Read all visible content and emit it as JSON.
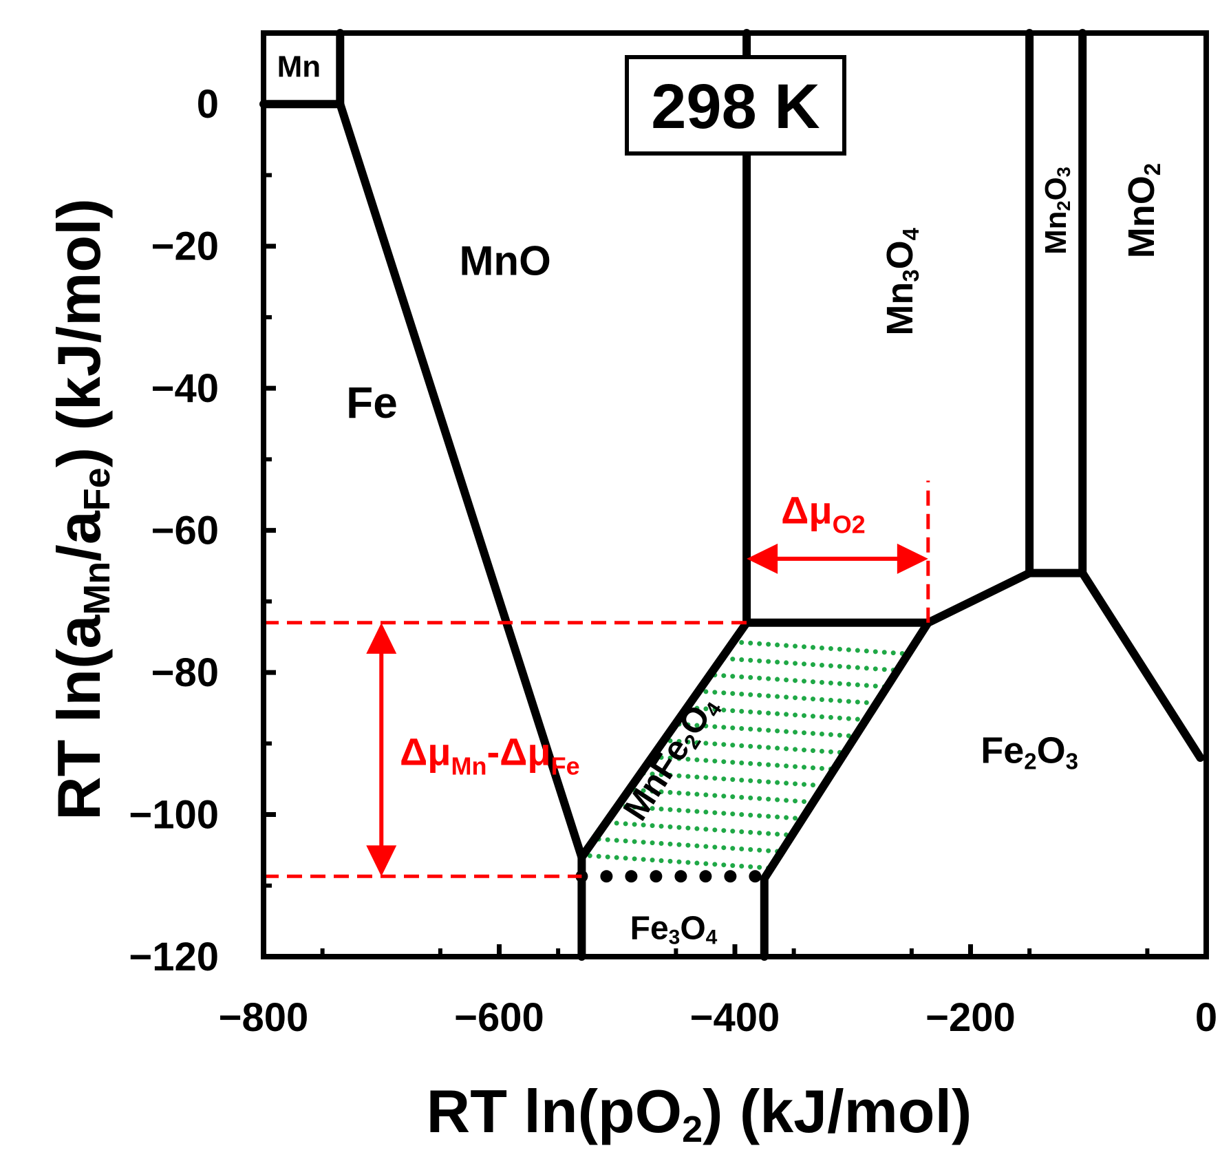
{
  "colors": {
    "line": "#000000",
    "annotation": "#ff0000",
    "hatch": "#1fa846",
    "background": "#ffffff"
  },
  "chart_data": {
    "type": "phase-diagram",
    "title": "298 K",
    "xlabel": {
      "main": "RT ln(pO",
      "sub": "2",
      "tail": ") (kJ/mol)"
    },
    "ylabel": {
      "p1": "RT ln(a",
      "s1": "Mn",
      "p2": "/a",
      "s2": "Fe",
      "p3": ") (kJ/mol)"
    },
    "xlim": [
      -800,
      0
    ],
    "ylim": [
      -120,
      10
    ],
    "xticks": [
      -800,
      -600,
      -400,
      -200,
      0
    ],
    "xtick_labels": [
      "−800",
      "−600",
      "−400",
      "−200",
      "0"
    ],
    "yticks": [
      0,
      -20,
      -40,
      -60,
      -80,
      -100,
      -120
    ],
    "ytick_labels": [
      "0",
      "−20",
      "−40",
      "−60",
      "−80",
      "−100",
      "−120"
    ],
    "boundaries": [
      {
        "name": "mn-bottom",
        "points": [
          [
            -800,
            0
          ],
          [
            -735,
            0
          ]
        ]
      },
      {
        "name": "mn-right",
        "points": [
          [
            -735,
            0
          ],
          [
            -735,
            10
          ]
        ]
      },
      {
        "name": "fe-mno",
        "points": [
          [
            -735,
            0
          ],
          [
            -530,
            -106
          ]
        ]
      },
      {
        "name": "fe-fe3o4",
        "points": [
          [
            -530,
            -106
          ],
          [
            -530,
            -120
          ]
        ]
      },
      {
        "name": "mno-mnfe2o4",
        "points": [
          [
            -530,
            -106
          ],
          [
            -390,
            -73
          ]
        ]
      },
      {
        "name": "mno-mn3o4",
        "points": [
          [
            -390,
            -73
          ],
          [
            -390,
            10
          ]
        ]
      },
      {
        "name": "mn3o4-mnfe2o4",
        "points": [
          [
            -390,
            -73
          ],
          [
            -236,
            -73
          ]
        ]
      },
      {
        "name": "mnfe2o4-fe2o3",
        "points": [
          [
            -236,
            -73
          ],
          [
            -375,
            -109
          ]
        ]
      },
      {
        "name": "fe3o4-fe2o3",
        "points": [
          [
            -375,
            -109
          ],
          [
            -375,
            -120
          ]
        ]
      },
      {
        "name": "mn3o4-fe2o3",
        "points": [
          [
            -236,
            -73
          ],
          [
            -150,
            -66
          ]
        ]
      },
      {
        "name": "mn3o4-mn2o3",
        "points": [
          [
            -150,
            -66
          ],
          [
            -150,
            10
          ]
        ]
      },
      {
        "name": "mn2o3-fe2o3",
        "points": [
          [
            -150,
            -66
          ],
          [
            -105,
            -66
          ]
        ]
      },
      {
        "name": "mn2o3-mno2",
        "points": [
          [
            -105,
            -66
          ],
          [
            -105,
            10
          ]
        ]
      },
      {
        "name": "mno2-fe2o3",
        "points": [
          [
            -105,
            -66
          ],
          [
            -5,
            -92
          ]
        ]
      }
    ],
    "dotted_boundary": {
      "name": "fe3o4-mnfe2o4",
      "points": [
        [
          -530,
          -108.7
        ],
        [
          -375,
          -108.7
        ]
      ]
    },
    "shaded_region": {
      "name": "MnFe2O4",
      "points": [
        [
          -530,
          -106
        ],
        [
          -390,
          -73
        ],
        [
          -236,
          -73
        ],
        [
          -375,
          -109
        ],
        [
          -530,
          -109
        ]
      ]
    },
    "phases": [
      {
        "name": "phase-label-mn",
        "text": "Mn",
        "sub": "",
        "tail": "",
        "sub2": "",
        "x": -770,
        "y": 5.3,
        "rotate": 0,
        "size": 44
      },
      {
        "name": "phase-label-fe",
        "text": "Fe",
        "sub": "",
        "tail": "",
        "sub2": "",
        "x": -708,
        "y": -42,
        "rotate": 0,
        "size": 64
      },
      {
        "name": "phase-label-mno",
        "text": "MnO",
        "sub": "",
        "tail": "",
        "sub2": "",
        "x": -595,
        "y": -22,
        "rotate": 0,
        "size": 60
      },
      {
        "name": "phase-label-mn3o4",
        "text": "Mn",
        "sub": "3",
        "tail": "O",
        "sub2": "4",
        "x": -260,
        "y": -25,
        "rotate": -90,
        "size": 54
      },
      {
        "name": "phase-label-mn2o3",
        "text": "Mn",
        "sub": "2",
        "tail": "O",
        "sub2": "3",
        "x": -128,
        "y": -15,
        "rotate": -90,
        "size": 44
      },
      {
        "name": "phase-label-mno2",
        "text": "MnO",
        "sub": "2",
        "tail": "",
        "sub2": "",
        "x": -55,
        "y": -15,
        "rotate": -90,
        "size": 54
      },
      {
        "name": "phase-label-fe2o3",
        "text": "Fe",
        "sub": "2",
        "tail": "O",
        "sub2": "3",
        "x": -150,
        "y": -91,
        "rotate": 0,
        "size": 54
      },
      {
        "name": "phase-label-fe3o4",
        "text": "Fe",
        "sub": "3",
        "tail": "O",
        "sub2": "4",
        "x": -452,
        "y": -116,
        "rotate": 0,
        "size": 48
      },
      {
        "name": "phase-label-mnfe2o4",
        "text": "MnFe",
        "sub": "2",
        "tail": "O",
        "sub2": "4",
        "x": -455,
        "y": -92,
        "rotate": -57,
        "size": 50
      }
    ],
    "annotations": {
      "delta_o2": {
        "text": "Δμ",
        "sub": "O2",
        "x": -325,
        "y": -59,
        "arrow": [
          [
            -390,
            -64
          ],
          [
            -236,
            -64
          ]
        ]
      },
      "delta_mnfe": {
        "p1": "Δμ",
        "s1": "Mn",
        "p2": "-Δμ",
        "s2": "Fe",
        "x": -608,
        "y": -93,
        "arrow": [
          [
            -700,
            -73
          ],
          [
            -700,
            -108.7
          ]
        ]
      },
      "dashed_lines": [
        {
          "name": "dashed-line-upper",
          "points": [
            [
              -800,
              -73
            ],
            [
              -390,
              -73
            ]
          ]
        },
        {
          "name": "dashed-line-lower",
          "points": [
            [
              -800,
              -108.7
            ],
            [
              -530,
              -108.7
            ]
          ]
        },
        {
          "name": "dashed-line-vertical",
          "points": [
            [
              -236,
              -73
            ],
            [
              -236,
              -53
            ]
          ]
        }
      ]
    }
  }
}
